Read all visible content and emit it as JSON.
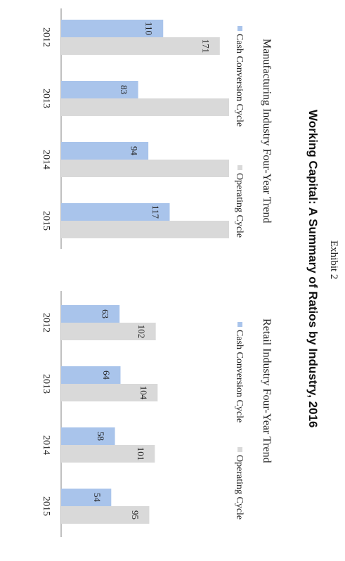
{
  "exhibit_label": "Exhibit 2",
  "title": "Working Capital: A Summary of Ratios by Industry, 2016",
  "colors": {
    "cash_conversion": "#A9C4EB",
    "operating": "#D9D9D9",
    "axis": "#808080",
    "label_text": "#222222"
  },
  "chart_data": [
    {
      "type": "bar",
      "title": "Manufacturing Industry Four-Year Trend",
      "categories": [
        "2012",
        "2013",
        "2014",
        "2015"
      ],
      "series": [
        {
          "name": "Cash Conversion Cycle",
          "values": [
            110,
            83,
            94,
            117
          ]
        },
        {
          "name": "Operating Cycle",
          "values": [
            171,
            181,
            181,
            181
          ]
        }
      ],
      "legend": [
        "Cash Conversion Cycle",
        "Operating Cycle"
      ],
      "xlim": [
        0,
        181
      ]
    },
    {
      "type": "bar",
      "title": "Retail Industry Four-Year Trend",
      "categories": [
        "2012",
        "2013",
        "2014",
        "2015"
      ],
      "series": [
        {
          "name": "Cash Conversion Cycle",
          "values": [
            63,
            64,
            58,
            54
          ]
        },
        {
          "name": "Operating Cycle",
          "values": [
            102,
            104,
            101,
            95
          ]
        }
      ],
      "legend": [
        "Cash Conversion Cycle",
        "Operating Cycle"
      ],
      "xlim": [
        0,
        181
      ]
    }
  ]
}
